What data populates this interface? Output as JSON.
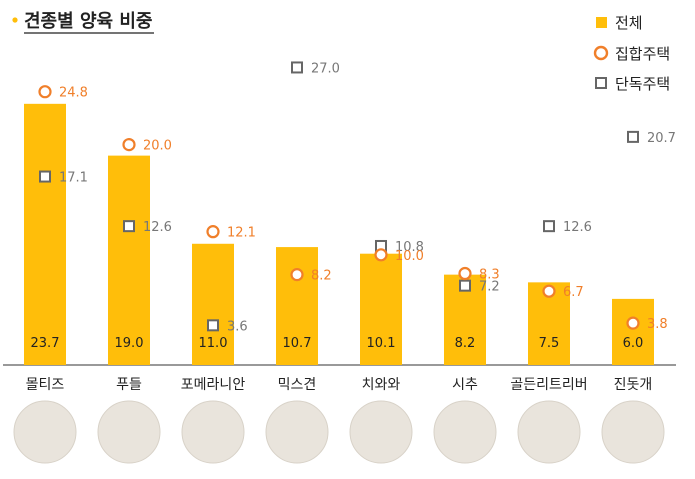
{
  "chart_data": {
    "type": "bar",
    "title": "견종별 양육 비중",
    "categories": [
      "몰티즈",
      "푸들",
      "포메라니안",
      "믹스견",
      "치와와",
      "시추",
      "골든리트리버",
      "진돗개"
    ],
    "series": [
      {
        "name": "전체",
        "kind": "bar",
        "values": [
          23.7,
          19.0,
          11.0,
          10.7,
          10.1,
          8.2,
          7.5,
          6.0
        ]
      },
      {
        "name": "집합주택",
        "kind": "marker-circle",
        "values": [
          24.8,
          20.0,
          12.1,
          8.2,
          10.0,
          8.3,
          6.7,
          3.8
        ]
      },
      {
        "name": "단독주택",
        "kind": "marker-square",
        "values": [
          17.1,
          12.6,
          3.6,
          27.0,
          10.8,
          7.2,
          12.6,
          20.7
        ]
      }
    ],
    "ylim": [
      0,
      29
    ],
    "grid": false,
    "legend_position": "top-right",
    "category_images": [
      "dog-photo-maltese",
      "dog-photo-poodle",
      "dog-photo-pomeranian",
      "dog-photo-mixed",
      "dog-photo-chihuahua",
      "dog-photo-shihtzu",
      "dog-photo-golden-retriever",
      "dog-photo-jindo"
    ]
  },
  "colors": {
    "bar": "#ffbe0a",
    "circle": "#f07f2a",
    "square": "#666666",
    "square_label": "#777777",
    "axis": "#333333",
    "text": "#222222",
    "title_dot": "#ffbe0a"
  }
}
